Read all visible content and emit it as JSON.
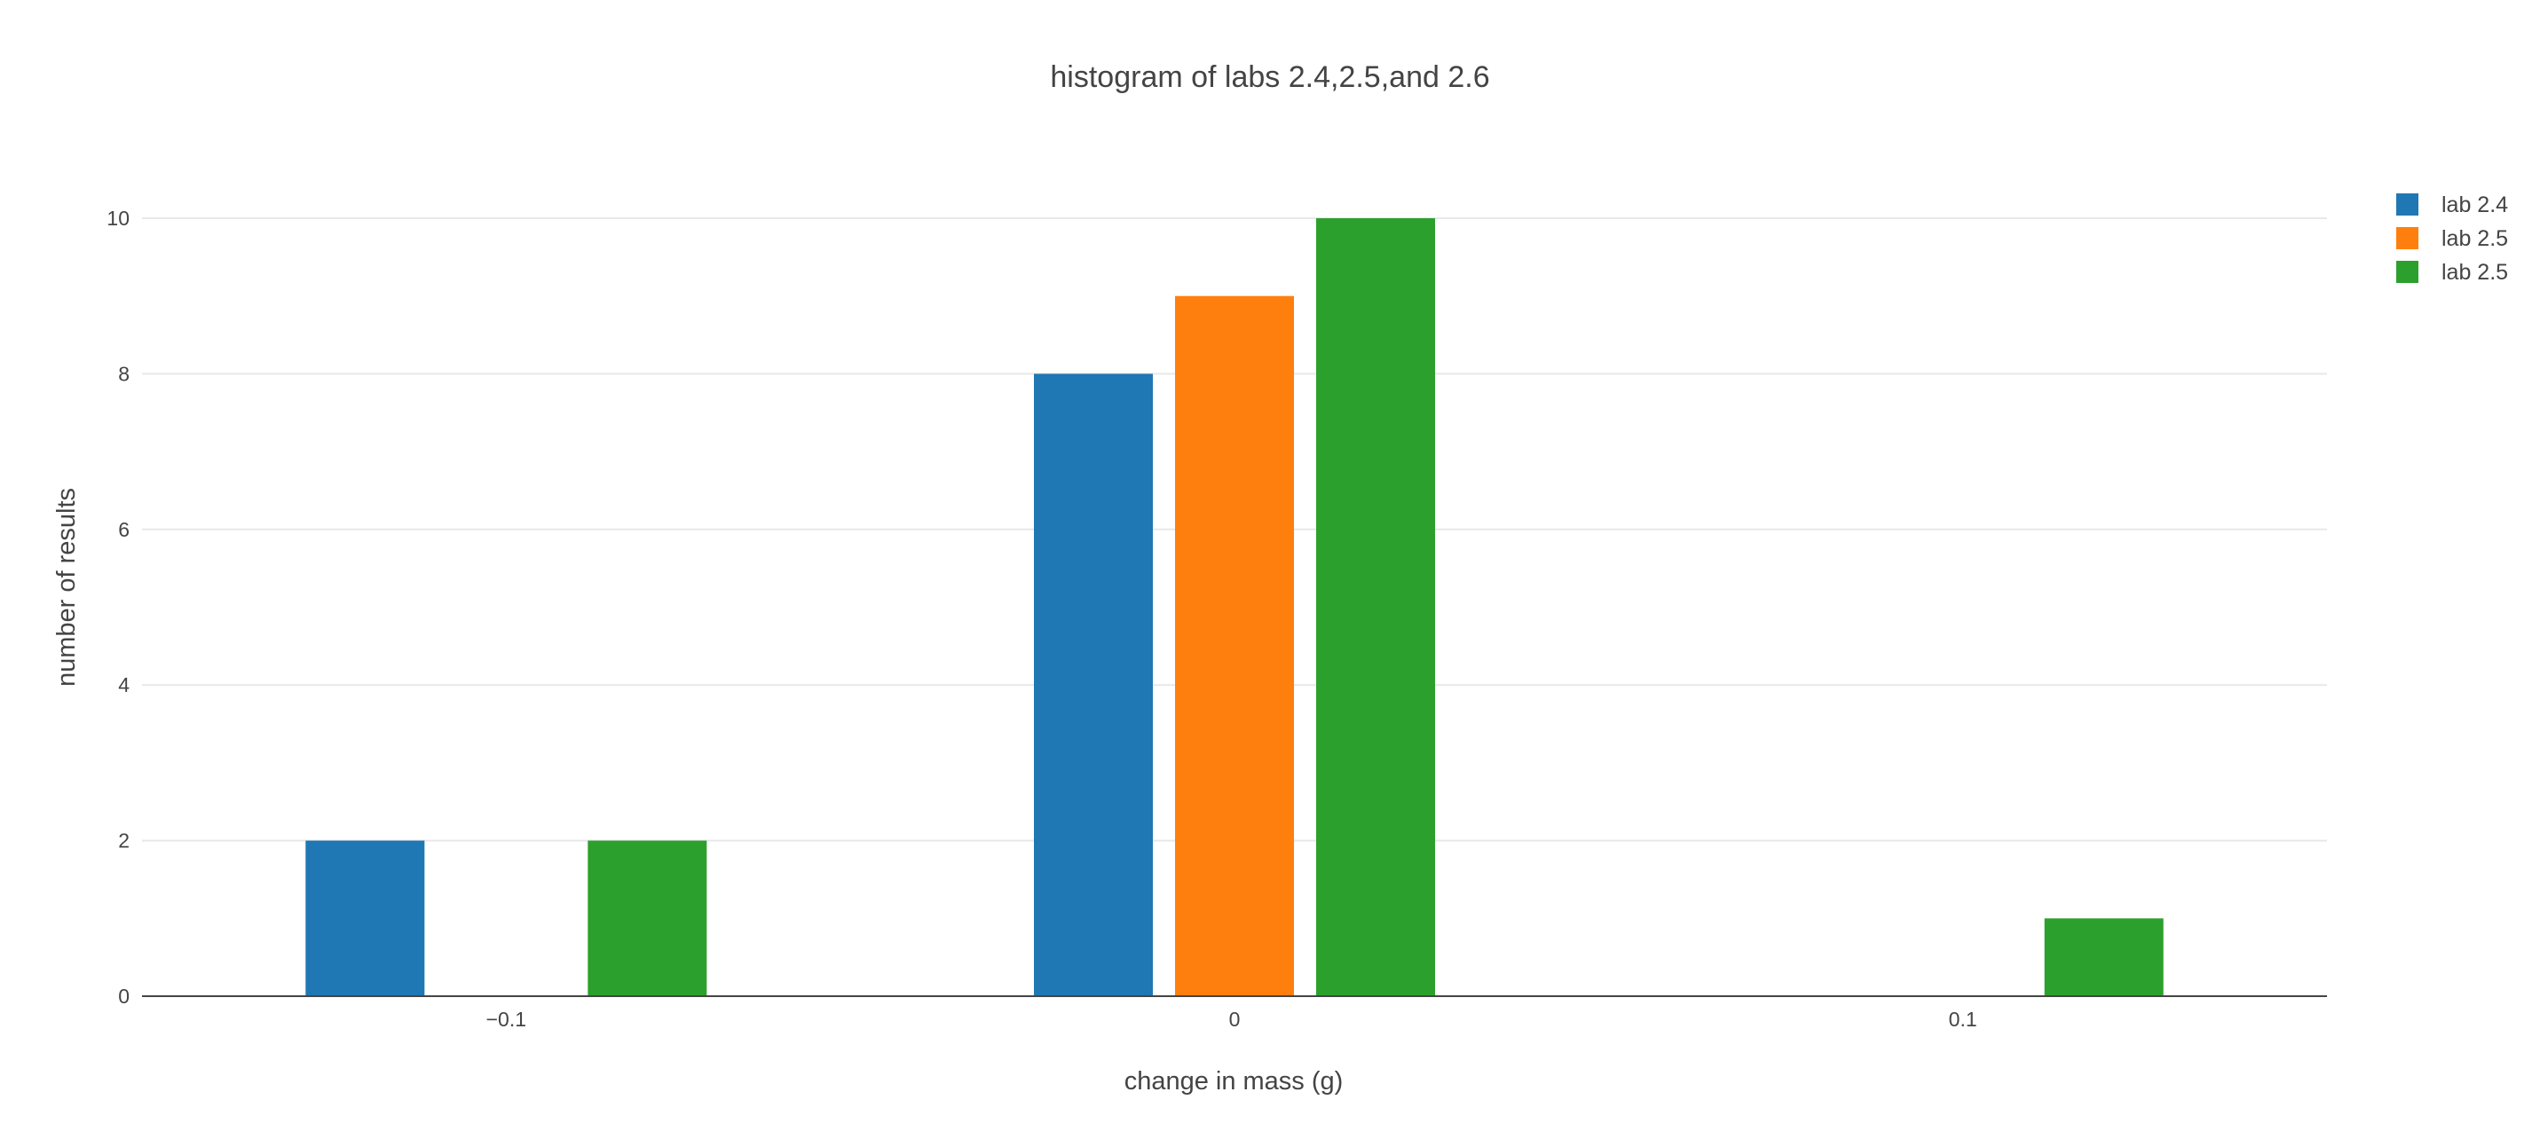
{
  "chart_data": {
    "type": "bar",
    "title": "histogram of labs 2.4,2.5,and 2.6",
    "xlabel": "change in mass (g)",
    "ylabel": "number of results",
    "categories": [
      -0.1,
      0,
      0.1
    ],
    "x_tick_labels": [
      "−0.1",
      "0",
      "0.1"
    ],
    "y_ticks": [
      0,
      2,
      4,
      6,
      8,
      10
    ],
    "ylim": [
      0,
      10
    ],
    "grid": true,
    "legend_position": "top-right",
    "series": [
      {
        "name": "lab 2.4",
        "color": "#1f77b4",
        "values": [
          2,
          8,
          0
        ]
      },
      {
        "name": "lab 2.5",
        "color": "#ff7f0e",
        "values": [
          0,
          9,
          0
        ]
      },
      {
        "name": "lab 2.5",
        "color": "#2ca02c",
        "values": [
          2,
          10,
          1
        ]
      }
    ]
  }
}
